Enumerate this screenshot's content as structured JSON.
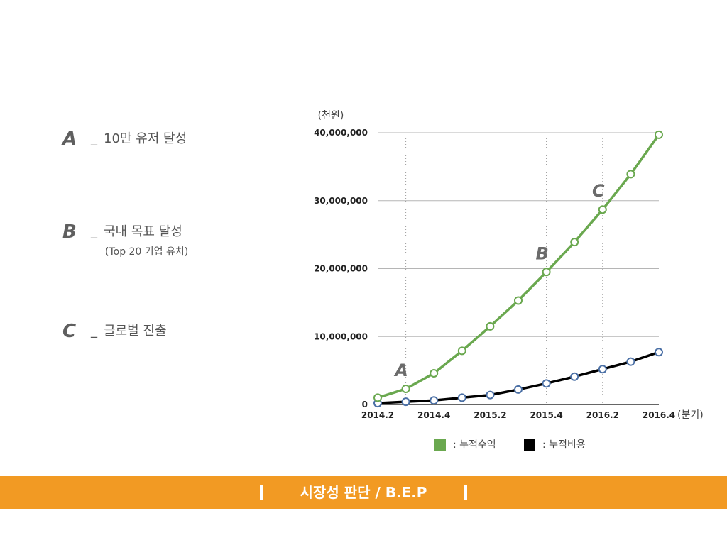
{
  "milestones": [
    {
      "letter": "A",
      "dash": "_",
      "text": "10만 유저 달성",
      "sub": ""
    },
    {
      "letter": "B",
      "dash": "_",
      "text": "국내 목표 달성",
      "sub": "(Top 20 기업 유치)"
    },
    {
      "letter": "C",
      "dash": "_",
      "text": "글로벌 진출",
      "sub": ""
    }
  ],
  "legend": {
    "revenue": {
      "label": ": 누적수익",
      "color": "#6aa84f"
    },
    "cost": {
      "label": ": 누적비용",
      "color": "#000000"
    }
  },
  "banner": {
    "title": "시장성 판단 / B.E.P",
    "color": "#f29a23"
  },
  "chart_data": {
    "type": "line",
    "title": "",
    "xlabel": "(분기)",
    "ylabel": "(천원)",
    "ylim": [
      0,
      40000000
    ],
    "x": [
      "2014.2",
      "2014.3",
      "2014.4",
      "2015.1",
      "2015.2",
      "2015.3",
      "2015.4",
      "2016.1",
      "2016.2",
      "2016.3",
      "2016.4"
    ],
    "x_tick_labels": [
      "2014.2",
      "2014.4",
      "2015.2",
      "2015.4",
      "2016.2",
      "2016.4"
    ],
    "y_tick_labels": [
      "0",
      "10,000,000",
      "20,000,000",
      "30,000,000",
      "40,000,000"
    ],
    "grid": true,
    "legend_position": "bottom",
    "series": [
      {
        "name": "누적수익",
        "color": "#6aa84f",
        "values": [
          1000000,
          2300000,
          4600000,
          7900000,
          11500000,
          15300000,
          19500000,
          23900000,
          28700000,
          33900000,
          39700000
        ]
      },
      {
        "name": "누적비용",
        "color": "#000000",
        "values": [
          200000,
          400000,
          600000,
          1000000,
          1400000,
          2200000,
          3100000,
          4100000,
          5200000,
          6300000,
          7700000
        ]
      }
    ],
    "annotations": [
      {
        "label": "A",
        "x": "2014.3"
      },
      {
        "label": "B",
        "x": "2015.4"
      },
      {
        "label": "C",
        "x": "2016.2"
      }
    ]
  }
}
